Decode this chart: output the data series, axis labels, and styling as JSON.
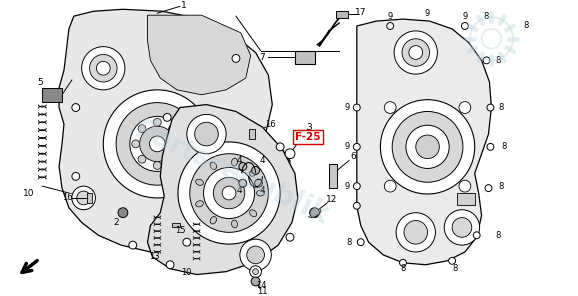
{
  "background_color": "#ffffff",
  "watermark_text": "Partsrepublik",
  "watermark_color": "#b8ccd8",
  "watermark_alpha": 0.35,
  "line_color": "#000000",
  "ref_label": "F-25",
  "ref_label_color": "#cc0000",
  "fig_width": 5.78,
  "fig_height": 2.96,
  "dpi": 100,
  "left_case_color": "#e8e8e8",
  "right_case_color": "#ececec",
  "panel_color": "#f0f0f0"
}
